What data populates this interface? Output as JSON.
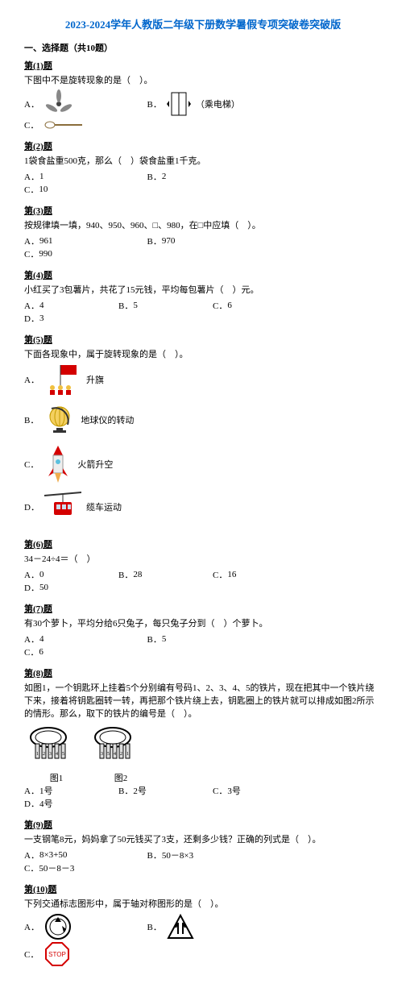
{
  "title": "2023-2024学年人教版二年级下册数学暑假专项突破卷突破版",
  "section": "一、选择题（共10题）",
  "questions": [
    {
      "label": "第(1)题",
      "text": "下图中不是旋转现象的是（　）。",
      "opts": [
        {
          "k": "A．",
          "label": "",
          "icon": "fan"
        },
        {
          "k": "B．",
          "label": "（乘电梯）",
          "icon": "elevator"
        },
        {
          "k": "C．",
          "label": "",
          "icon": "spoon"
        }
      ],
      "layout": "3-icons"
    },
    {
      "label": "第(2)题",
      "text": "1袋食盐重500克，那么（　）袋食盐重1千克。",
      "opts": [
        {
          "k": "A．",
          "label": "1"
        },
        {
          "k": "B．",
          "label": "2"
        },
        {
          "k": "C．",
          "label": "10"
        }
      ],
      "layout": "3"
    },
    {
      "label": "第(3)题",
      "text": "按规律填一填，940、950、960、□、980，在□中应填（　）。",
      "opts": [
        {
          "k": "A．",
          "label": "961"
        },
        {
          "k": "B．",
          "label": "970"
        },
        {
          "k": "C．",
          "label": "990"
        }
      ],
      "layout": "3"
    },
    {
      "label": "第(4)题",
      "text": "小红买了3包薯片，共花了15元钱，平均每包薯片（　）元。",
      "opts": [
        {
          "k": "A．",
          "label": "4"
        },
        {
          "k": "B．",
          "label": "5"
        },
        {
          "k": "C．",
          "label": "6"
        },
        {
          "k": "D．",
          "label": "3"
        }
      ],
      "layout": "4"
    },
    {
      "label": "第(5)题",
      "text": "下面各现象中，属于旋转现象的是（　）。",
      "opts": [
        {
          "k": "A．",
          "label": "升旗",
          "icon": "flag"
        },
        {
          "k": "B．",
          "label": "地球仪的转动",
          "icon": "globe"
        },
        {
          "k": "C．",
          "label": "火箭升空",
          "icon": "rocket"
        },
        {
          "k": "D．",
          "label": "缆车运动",
          "icon": "cablecar"
        }
      ],
      "layout": "2x2-icons"
    },
    {
      "label": "第(6)题",
      "text": "34－24÷4＝（　）",
      "opts": [
        {
          "k": "A．",
          "label": "0"
        },
        {
          "k": "B．",
          "label": "28"
        },
        {
          "k": "C．",
          "label": "16"
        },
        {
          "k": "D．",
          "label": "50"
        }
      ],
      "layout": "4"
    },
    {
      "label": "第(7)题",
      "text": "有30个萝卜，平均分给6只兔子，每只兔子分到（　）个萝卜。",
      "opts": [
        {
          "k": "A．",
          "label": "4"
        },
        {
          "k": "B．",
          "label": "5"
        },
        {
          "k": "C．",
          "label": "6"
        }
      ],
      "layout": "3"
    },
    {
      "label": "第(8)题",
      "text": "如图1，一个钥匙环上挂着5个分别编有号码1、2、3、4、5的铁片，现在把其中一个铁片绕下来，接着将钥匙圈转一转，再把那个铁片绕上去，钥匙圈上的铁片就可以排成如图2所示的情形。那么，取下的铁片的编号是（　）。",
      "image": "keyring",
      "captions": [
        "图1",
        "图2"
      ],
      "opts": [
        {
          "k": "A．",
          "label": "1号"
        },
        {
          "k": "B．",
          "label": "2号"
        },
        {
          "k": "C．",
          "label": "3号"
        },
        {
          "k": "D．",
          "label": "4号"
        }
      ],
      "layout": "4"
    },
    {
      "label": "第(9)题",
      "text": "一支钢笔8元，妈妈拿了50元钱买了3支，还剩多少钱？正确的列式是（　）。",
      "opts": [
        {
          "k": "A．",
          "label": "8×3+50"
        },
        {
          "k": "B．",
          "label": "50－8×3"
        },
        {
          "k": "C．",
          "label": "50－8－3"
        }
      ],
      "layout": "3"
    },
    {
      "label": "第(10)题",
      "text": "下列交通标志图形中，属于轴对称图形的是（　）。",
      "opts": [
        {
          "k": "A．",
          "label": "",
          "icon": "circle-arrow"
        },
        {
          "k": "B．",
          "label": "",
          "icon": "triangle"
        },
        {
          "k": "C．",
          "label": "",
          "icon": "stop"
        }
      ],
      "layout": "3-icons"
    }
  ]
}
